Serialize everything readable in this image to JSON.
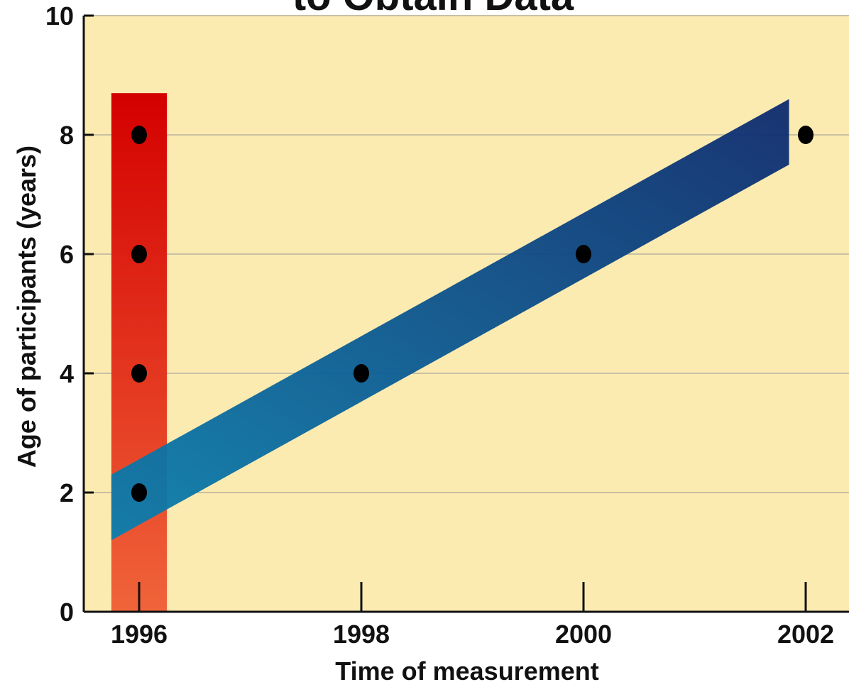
{
  "chart_data": {
    "type": "scatter",
    "title": "to Obtain Data",
    "xlabel": "Time of measurement",
    "ylabel": "Age of participants (years)",
    "xlim": [
      1995.5,
      2002.4
    ],
    "ylim": [
      0,
      10
    ],
    "x_ticks": [
      1996,
      1998,
      2000,
      2002
    ],
    "y_ticks": [
      0,
      2,
      4,
      6,
      8,
      10
    ],
    "grid": true,
    "series": [
      {
        "points": [
          {
            "x": 1996,
            "y": 2
          },
          {
            "x": 1996,
            "y": 4
          },
          {
            "x": 1996,
            "y": 6
          },
          {
            "x": 1996,
            "y": 8
          }
        ]
      },
      {
        "points": [
          {
            "x": 1996,
            "y": 2
          },
          {
            "x": 1998,
            "y": 4
          },
          {
            "x": 2000,
            "y": 6
          },
          {
            "x": 2002,
            "y": 8
          }
        ]
      }
    ],
    "highlight_bands": [
      {
        "orientation": "vertical",
        "x_from": 1995.75,
        "x_to": 1996.25,
        "y_from": 0,
        "y_to": 8.7,
        "color_top": "#d40000",
        "color_bottom": "#f0643a"
      },
      {
        "orientation": "diagonal",
        "x_from": 1995.75,
        "x_to": 2001.85,
        "y_from_low": 1.2,
        "y_from_high": 2.3,
        "y_to_low": 7.5,
        "y_to_high": 8.6,
        "color_start": "#0a7fae",
        "color_end": "#0d2a6e"
      }
    ],
    "colors": {
      "background": "#fcebb0",
      "grid": "#c9c0a3",
      "points": "#000000",
      "axis": "#111111"
    }
  }
}
